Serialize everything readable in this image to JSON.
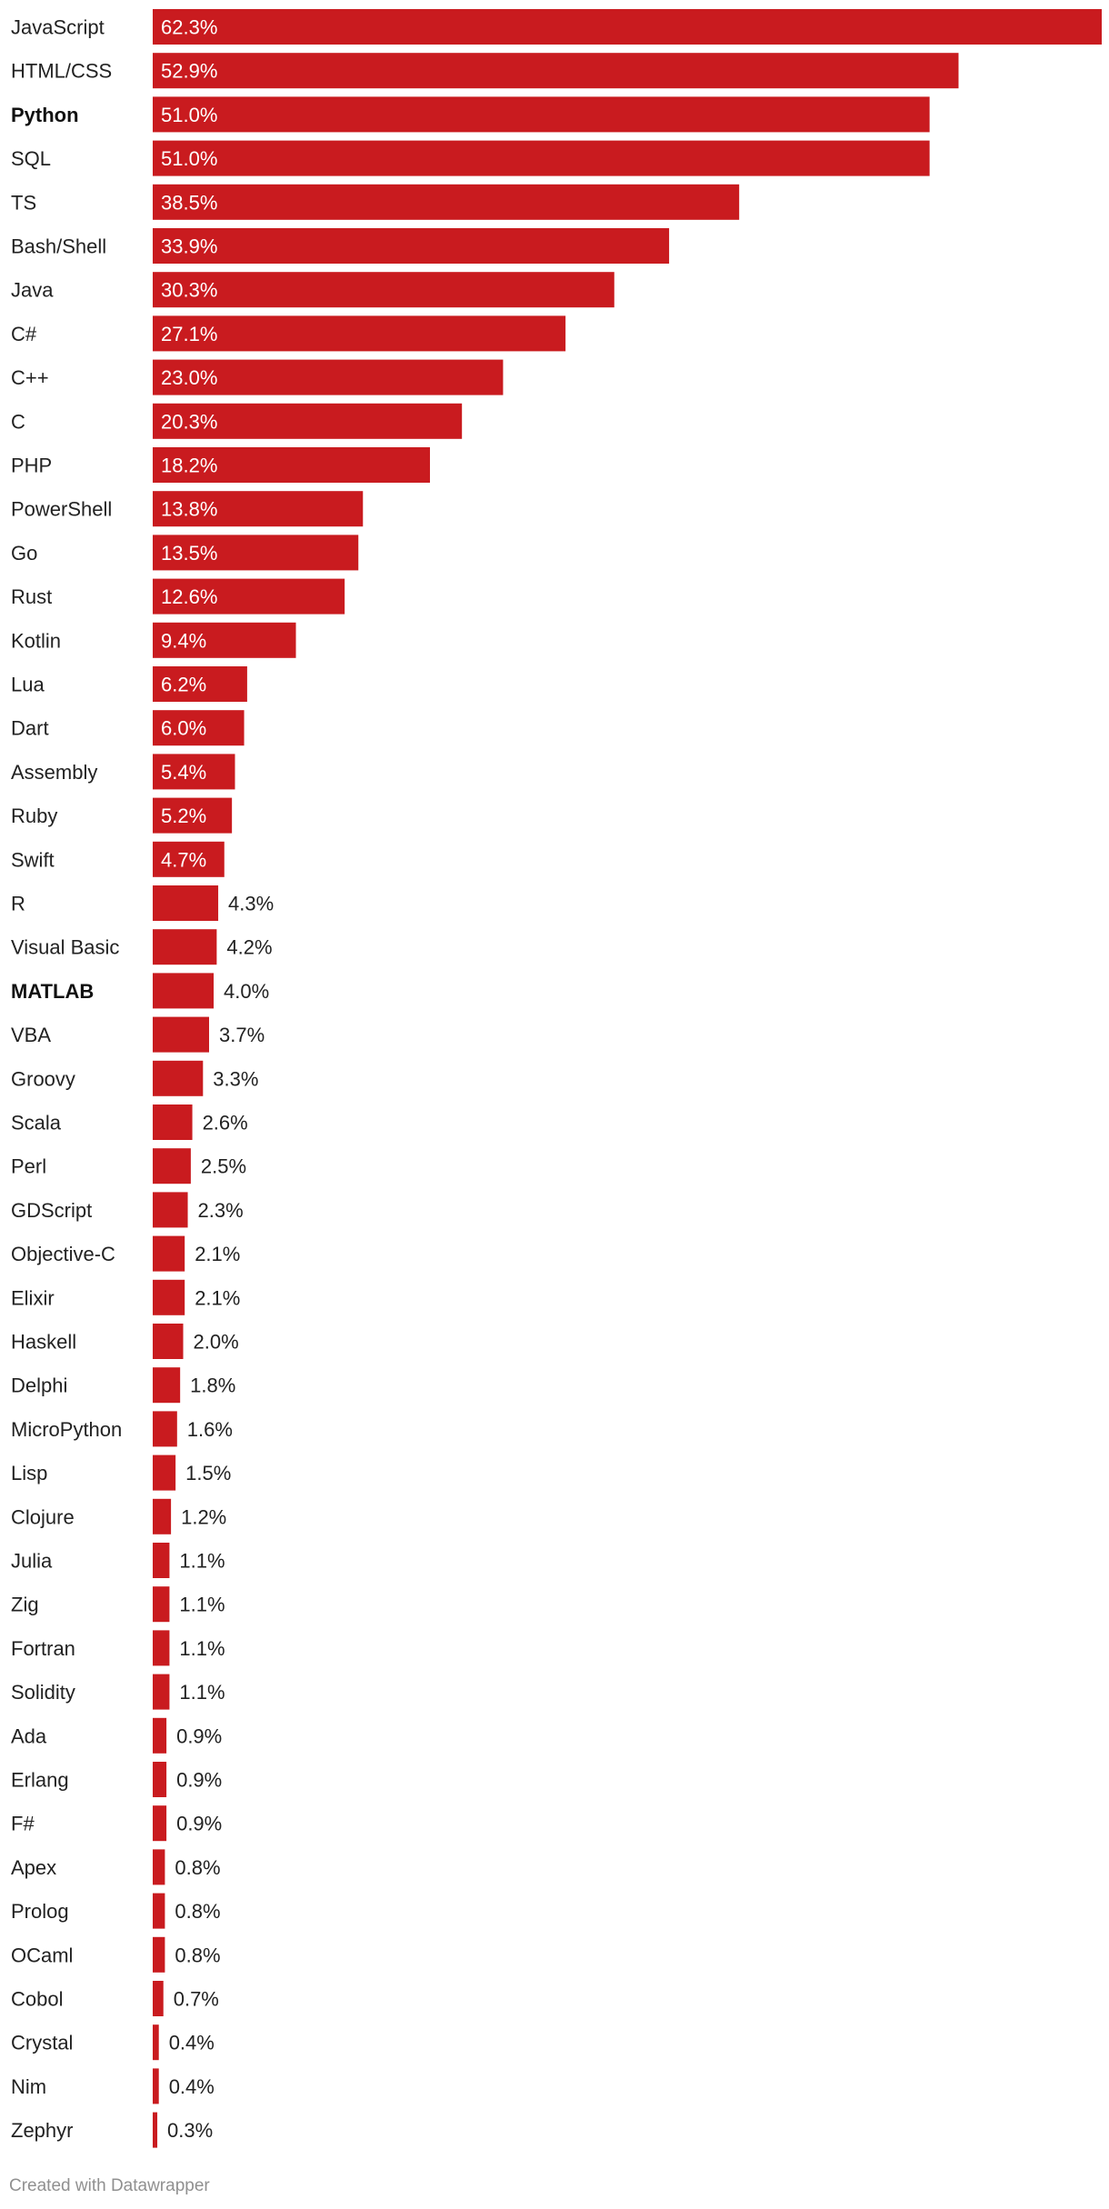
{
  "chart_data": {
    "type": "bar",
    "orientation": "horizontal",
    "value_suffix": "%",
    "bar_color": "#c91b1f",
    "label_inside_color": "#ffffff",
    "label_outside_color": "#222222",
    "bold_categories": [
      "Python",
      "MATLAB"
    ],
    "categories": [
      "JavaScript",
      "HTML/CSS",
      "Python",
      "SQL",
      "TS",
      "Bash/Shell",
      "Java",
      "C#",
      "C++",
      "C",
      "PHP",
      "PowerShell",
      "Go",
      "Rust",
      "Kotlin",
      "Lua",
      "Dart",
      "Assembly",
      "Ruby",
      "Swift",
      "R",
      "Visual Basic",
      "MATLAB",
      "VBA",
      "Groovy",
      "Scala",
      "Perl",
      "GDScript",
      "Objective-C",
      "Elixir",
      "Haskell",
      "Delphi",
      "MicroPython",
      "Lisp",
      "Clojure",
      "Julia",
      "Zig",
      "Fortran",
      "Solidity",
      "Ada",
      "Erlang",
      "F#",
      "Apex",
      "Prolog",
      "OCaml",
      "Cobol",
      "Crystal",
      "Nim",
      "Zephyr"
    ],
    "values": [
      62.3,
      52.9,
      51.0,
      51.0,
      38.5,
      33.9,
      30.3,
      27.1,
      23.0,
      20.3,
      18.2,
      13.8,
      13.5,
      12.6,
      9.4,
      6.2,
      6.0,
      5.4,
      5.2,
      4.7,
      4.3,
      4.2,
      4.0,
      3.7,
      3.3,
      2.6,
      2.5,
      2.3,
      2.1,
      2.1,
      2.0,
      1.8,
      1.6,
      1.5,
      1.2,
      1.1,
      1.1,
      1.1,
      1.1,
      0.9,
      0.9,
      0.9,
      0.8,
      0.8,
      0.8,
      0.7,
      0.4,
      0.4,
      0.3
    ],
    "xlim": [
      0,
      62.3
    ],
    "grid": false,
    "legend": "none"
  },
  "footer": {
    "credit": "Created with Datawrapper"
  }
}
